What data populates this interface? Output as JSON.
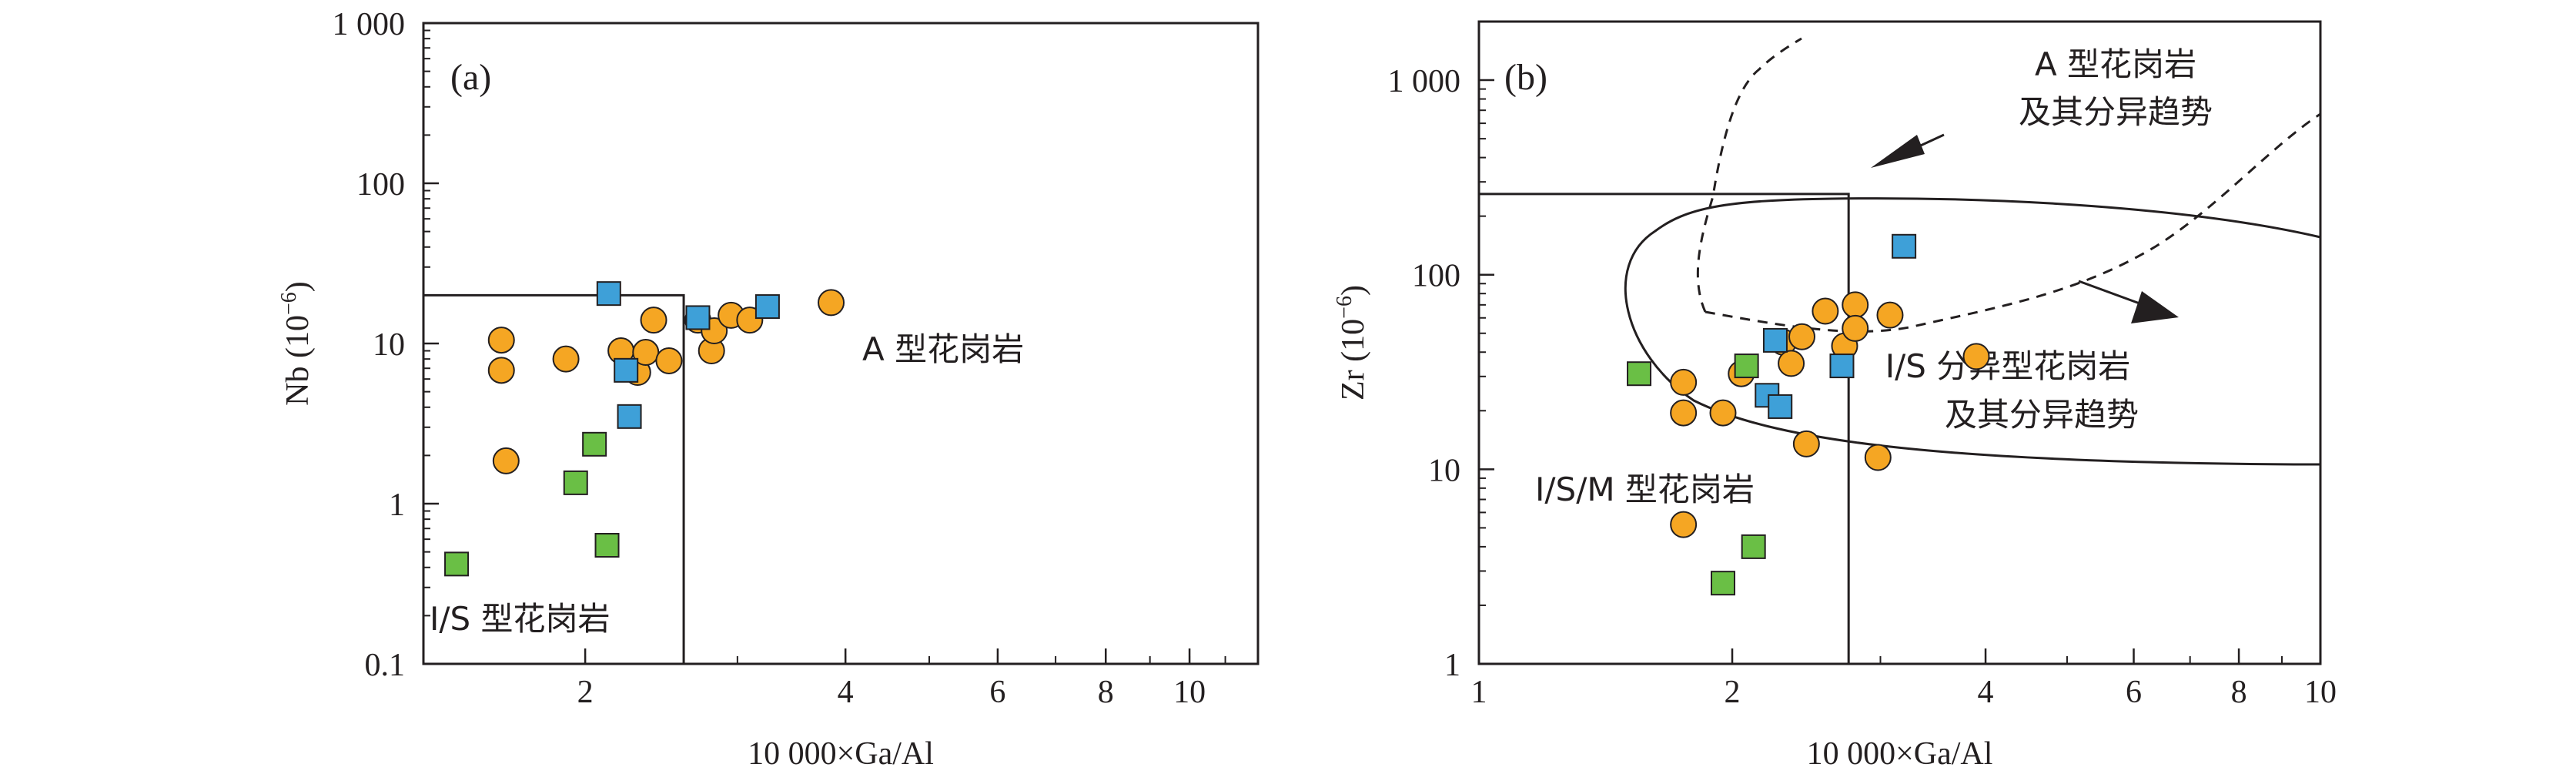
{
  "chart_data": [
    {
      "type": "scatter",
      "panel_label": "(a)",
      "xlabel": "10 000×Ga/Al",
      "ylabel": "Nb (10",
      "ylabel_sup": "−6",
      "ylabel_close": ")",
      "xscale": "log",
      "yscale": "log",
      "xlim": [
        1.3,
        12
      ],
      "ylim": [
        0.1,
        1000
      ],
      "xticks": [
        {
          "v": 2,
          "label": "2"
        },
        {
          "v": 4,
          "label": "4"
        },
        {
          "v": 6,
          "label": "6"
        },
        {
          "v": 8,
          "label": "8"
        },
        {
          "v": 10,
          "label": "10"
        }
      ],
      "yticks": [
        {
          "v": 0.1,
          "label": "0.1"
        },
        {
          "v": 1,
          "label": "1"
        },
        {
          "v": 10,
          "label": "10"
        },
        {
          "v": 100,
          "label": "100"
        },
        {
          "v": 1000,
          "label": "1 000"
        }
      ],
      "field_labels": [
        "A 型花岗岩",
        "I/S 型花岗岩"
      ],
      "boundary": {
        "x": 2.6,
        "y": 20
      },
      "series": [
        {
          "marker": "circle",
          "color": "#f5a623",
          "points": [
            [
              1.6,
              10.5
            ],
            [
              1.6,
              6.8
            ],
            [
              1.62,
              1.85
            ],
            [
              1.9,
              8
            ],
            [
              2.2,
              9
            ],
            [
              2.3,
              6.6
            ],
            [
              2.35,
              8.8
            ],
            [
              2.4,
              14
            ],
            [
              2.5,
              7.8
            ],
            [
              2.7,
              14
            ],
            [
              2.8,
              9
            ],
            [
              2.82,
              12
            ],
            [
              2.95,
              15
            ],
            [
              3.1,
              14
            ],
            [
              3.85,
              18
            ]
          ]
        },
        {
          "marker": "square",
          "color": "#3ea0d8",
          "points": [
            [
              2.13,
              20.5
            ],
            [
              2.23,
              6.8
            ],
            [
              2.25,
              3.5
            ],
            [
              2.7,
              14.5
            ],
            [
              3.25,
              17
            ]
          ]
        },
        {
          "marker": "square",
          "color": "#6abf45",
          "points": [
            [
              1.42,
              0.42
            ],
            [
              1.95,
              1.35
            ],
            [
              2.05,
              2.35
            ],
            [
              2.12,
              0.55
            ]
          ]
        }
      ]
    },
    {
      "type": "scatter",
      "panel_label": "(b)",
      "xlabel": "10 000×Ga/Al",
      "ylabel": "Zr (10",
      "ylabel_sup": "−6",
      "ylabel_close": ")",
      "xscale": "log",
      "yscale": "log",
      "xlim": [
        1,
        10
      ],
      "ylim": [
        1,
        2000
      ],
      "xticks": [
        {
          "v": 1,
          "label": "1"
        },
        {
          "v": 2,
          "label": "2"
        },
        {
          "v": 4,
          "label": "4"
        },
        {
          "v": 6,
          "label": "6"
        },
        {
          "v": 8,
          "label": "8"
        },
        {
          "v": 10,
          "label": "10"
        }
      ],
      "yticks": [
        {
          "v": 1,
          "label": "1"
        },
        {
          "v": 10,
          "label": "10"
        },
        {
          "v": 100,
          "label": "100"
        },
        {
          "v": 1000,
          "label": "1 000"
        }
      ],
      "field_labels": [
        "A 型花岗岩",
        "及其分异趋势",
        "I/S 分异型花岗岩",
        "及其分异趋势",
        "I/S/M 型花岗岩"
      ],
      "boundary": {
        "x": 2.75,
        "y": 260
      },
      "series": [
        {
          "marker": "circle",
          "color": "#f5a623",
          "points": [
            [
              1.75,
              28
            ],
            [
              1.75,
              19.5
            ],
            [
              1.75,
              5.2
            ],
            [
              1.95,
              19.5
            ],
            [
              2.05,
              31
            ],
            [
              2.3,
              45
            ],
            [
              2.35,
              35
            ],
            [
              2.42,
              48
            ],
            [
              2.45,
              13.5
            ],
            [
              2.58,
              65
            ],
            [
              2.72,
              43
            ],
            [
              2.8,
              70
            ],
            [
              2.8,
              53
            ],
            [
              3.08,
              62
            ],
            [
              2.98,
              11.5
            ],
            [
              3.9,
              38
            ]
          ]
        },
        {
          "marker": "square",
          "color": "#3ea0d8",
          "points": [
            [
              2.25,
              46
            ],
            [
              2.2,
              24
            ],
            [
              2.28,
              21
            ],
            [
              2.7,
              34
            ],
            [
              3.2,
              140
            ]
          ]
        },
        {
          "marker": "square",
          "color": "#6abf45",
          "points": [
            [
              1.55,
              31
            ],
            [
              2.08,
              34
            ],
            [
              2.12,
              4
            ],
            [
              1.95,
              2.6
            ]
          ]
        }
      ]
    }
  ]
}
